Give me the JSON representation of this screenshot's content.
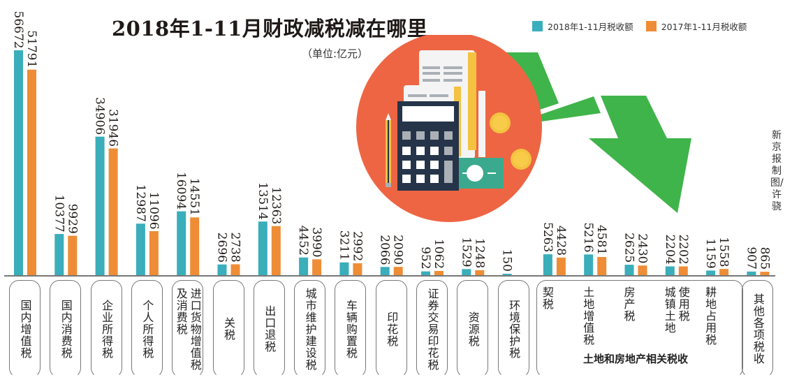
{
  "header": {
    "title": "2018年1-11月财政减税减在哪里",
    "unit": "（单位:亿元）",
    "credit": "新京报制图/许骁"
  },
  "legend": [
    {
      "label": "2018年1-11月税收额",
      "color": "#3aaeba"
    },
    {
      "label": "2017年1-11月税收额",
      "color": "#ee8d36"
    }
  ],
  "group_label": "土地和房地产相关税收",
  "categories": [
    {
      "label": "国内增值税",
      "lines": [
        "国内增值税"
      ]
    },
    {
      "label": "国内消费税",
      "lines": [
        "国内消费税"
      ]
    },
    {
      "label": "企业所得税",
      "lines": [
        "企业所得税"
      ]
    },
    {
      "label": "个人所得税",
      "lines": [
        "个人所得税"
      ]
    },
    {
      "label": "进口货物增值税及消费税",
      "lines": [
        "进口货物增值税",
        "及消费税"
      ]
    },
    {
      "label": "关税",
      "lines": [
        "关税"
      ]
    },
    {
      "label": "出口退税",
      "lines": [
        "出口退税"
      ]
    },
    {
      "label": "城市维护建设税",
      "lines": [
        "城市维护建设税"
      ]
    },
    {
      "label": "车辆购置税",
      "lines": [
        "车辆购置税"
      ]
    },
    {
      "label": "印花税",
      "lines": [
        "印花税"
      ]
    },
    {
      "label": "证券交易印花税",
      "lines": [
        "证券交易印花税"
      ]
    },
    {
      "label": "资源税",
      "lines": [
        "资源税"
      ]
    },
    {
      "label": "环境保护税",
      "lines": [
        "环境保护税"
      ]
    },
    {
      "label": "契税",
      "lines": [
        "契税"
      ]
    },
    {
      "label": "土地增值税",
      "lines": [
        "土地增值税"
      ]
    },
    {
      "label": "房产税",
      "lines": [
        "房产税"
      ]
    },
    {
      "label": "城镇土地使用税",
      "lines": [
        "城镇土地",
        "使用税"
      ]
    },
    {
      "label": "耕地占用税",
      "lines": [
        "耕地占用税"
      ]
    },
    {
      "label": "其他各项税收",
      "lines": [
        "其他各项税收"
      ]
    }
  ],
  "chart_data": {
    "type": "bar",
    "title": "2018年1-11月财政减税减在哪里",
    "subtitle": "（单位:亿元）",
    "xlabel": "",
    "ylabel": "亿元",
    "grid": false,
    "legend_position": "top-right",
    "categories": [
      "国内增值税",
      "国内消费税",
      "企业所得税",
      "个人所得税",
      "进口货物增值税及消费税",
      "关税",
      "出口退税",
      "城市维护建设税",
      "车辆购置税",
      "印花税",
      "证券交易印花税",
      "资源税",
      "环境保护税",
      "契税",
      "土地增值税",
      "房产税",
      "城镇土地使用税",
      "耕地占用税",
      "其他各项税收"
    ],
    "series": [
      {
        "name": "2018年1-11月税收额",
        "color": "#3aaeba",
        "values": [
          56672,
          10377,
          34906,
          12987,
          16094,
          2696,
          13514,
          4452,
          3211,
          2066,
          952,
          1529,
          150,
          5263,
          5216,
          2625,
          2204,
          1159,
          907
        ]
      },
      {
        "name": "2017年1-11月税收额",
        "color": "#ee8d36",
        "values": [
          51791,
          9929,
          31946,
          11096,
          14551,
          2738,
          12363,
          3990,
          2992,
          2090,
          1062,
          1248,
          null,
          4428,
          4581,
          2430,
          2202,
          1558,
          865
        ]
      }
    ],
    "annotations": [
      "土地和房地产相关税收 (契税, 土地增值税, 房产税, 城镇土地使用税, 耕地占用税)"
    ]
  }
}
